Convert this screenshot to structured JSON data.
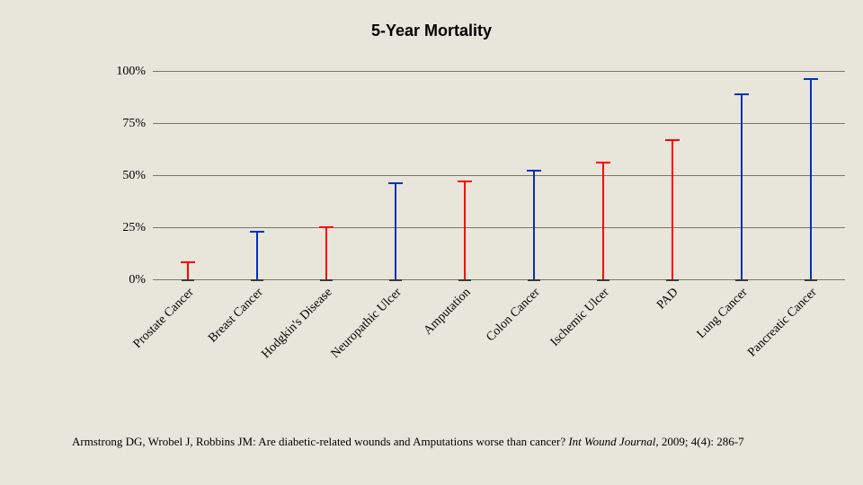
{
  "title": {
    "text": "5-Year Mortality",
    "fontsize": 18,
    "color": "#000000"
  },
  "chart": {
    "type": "high-low",
    "background_color": "#e8e6da",
    "grid_color": "#7a7766",
    "ylim": [
      0,
      100
    ],
    "yticks": [
      {
        "value": 0,
        "label": "0%"
      },
      {
        "value": 25,
        "label": "25%"
      },
      {
        "value": 50,
        "label": "50%"
      },
      {
        "value": 75,
        "label": "75%"
      },
      {
        "value": 100,
        "label": "100%"
      }
    ],
    "colors": {
      "red": "#ff0000",
      "blue": "#0030c0"
    },
    "cap_width": 16,
    "line_width": 2,
    "series": [
      {
        "label": "Prostate Cancer",
        "low": 0,
        "high": 8,
        "color_key": "red"
      },
      {
        "label": "Breast Cancer",
        "low": 0,
        "high": 23,
        "color_key": "blue"
      },
      {
        "label": "Hodgkin's Disease",
        "low": 0,
        "high": 25,
        "color_key": "red"
      },
      {
        "label": "Neuropathic Ulcer",
        "low": 0,
        "high": 46,
        "color_key": "blue"
      },
      {
        "label": "Amputation",
        "low": 0,
        "high": 47,
        "color_key": "red"
      },
      {
        "label": "Colon Cancer",
        "low": 0,
        "high": 52,
        "color_key": "blue"
      },
      {
        "label": "Ischemic Ulcer",
        "low": 0,
        "high": 56,
        "color_key": "red"
      },
      {
        "label": "PAD",
        "low": 0,
        "high": 67,
        "color_key": "red"
      },
      {
        "label": "Lung Cancer",
        "low": 0,
        "high": 89,
        "color_key": "blue"
      },
      {
        "label": "Pancreatic Cancer",
        "low": 0,
        "high": 96,
        "color_key": "blue"
      }
    ],
    "label_fontsize": 14
  },
  "citation": {
    "prefix": "Armstrong DG, Wrobel J, Robbins JM: Are diabetic-related wounds and Amputations worse than cancer? ",
    "journal": "Int Wound Journal",
    "suffix": ", 2009; 4(4): 286-7",
    "fontsize": 13
  }
}
